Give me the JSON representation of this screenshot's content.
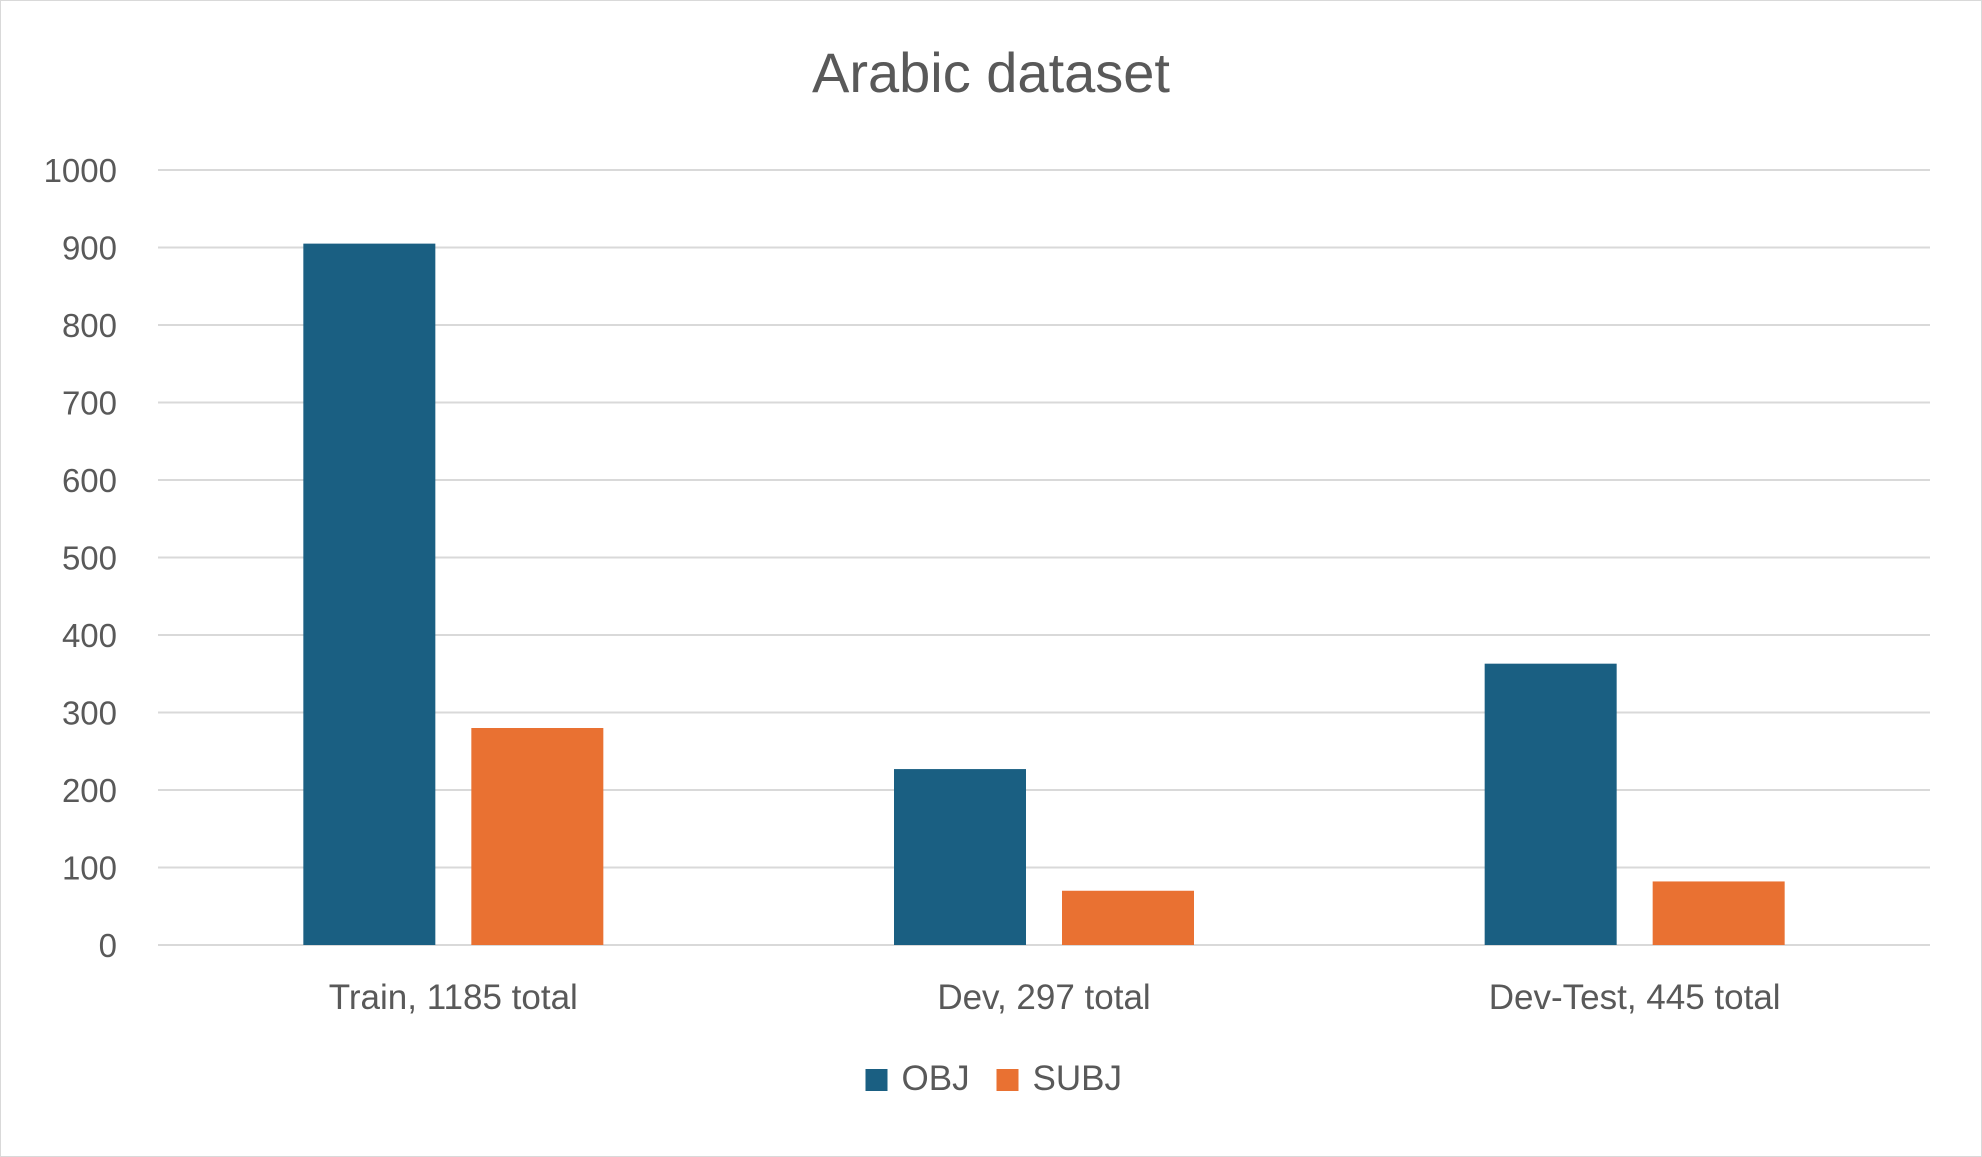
{
  "chart_data": {
    "type": "bar",
    "title": "Arabic dataset",
    "xlabel": "",
    "ylabel": "",
    "categories": [
      "Train, 1185 total",
      "Dev, 297 total",
      "Dev-Test, 445 total"
    ],
    "series": [
      {
        "name": "OBJ",
        "color": "#1a5f82",
        "values": [
          905,
          227,
          363
        ]
      },
      {
        "name": "SUBJ",
        "color": "#e97132",
        "values": [
          280,
          70,
          82
        ]
      }
    ],
    "ylim": [
      0,
      1000
    ],
    "yticks": [
      0,
      100,
      200,
      300,
      400,
      500,
      600,
      700,
      800,
      900,
      1000
    ],
    "grid": true,
    "legend_position": "bottom"
  }
}
